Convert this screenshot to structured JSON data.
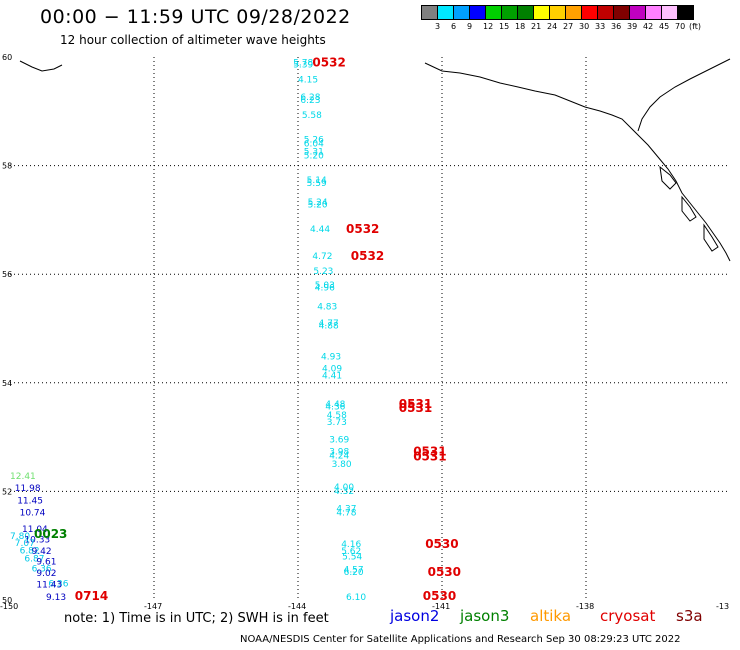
{
  "header": {
    "title": "00:00 − 11:59 UTC 09/28/2022",
    "subtitle": "12 hour collection of altimeter wave heights"
  },
  "legend": {
    "colors": [
      "#808080",
      "#00e8ff",
      "#00a0ff",
      "#0000ff",
      "#00d000",
      "#00a000",
      "#008000",
      "#ffff00",
      "#ffd000",
      "#ffa000",
      "#ff0000",
      "#c00000",
      "#800000",
      "#c000c0",
      "#ff80ff",
      "#ffc0ff",
      "#000000"
    ],
    "labels": [
      "3",
      "6",
      "9",
      "12",
      "15",
      "18",
      "21",
      "24",
      "27",
      "30",
      "33",
      "36",
      "39",
      "42",
      "45",
      "70",
      "(ft)"
    ]
  },
  "axes": {
    "x_ticks": [
      "-150",
      "-147",
      "-144",
      "-141",
      "-138",
      "-13"
    ],
    "y_ticks": [
      "60",
      "58",
      "56",
      "54",
      "52",
      "50"
    ]
  },
  "wave_labels": [
    {
      "t": "5.78",
      "c": "#00d8e8",
      "lon": -144.1,
      "lat": 59.92
    },
    {
      "t": "5.39",
      "c": "#00d8e8",
      "lon": -144.1,
      "lat": 59.88
    },
    {
      "t": "4.15",
      "c": "#00d8e8",
      "lon": -144.0,
      "lat": 59.6
    },
    {
      "t": "6.28",
      "c": "#00d8e8",
      "lon": -143.95,
      "lat": 59.28
    },
    {
      "t": "6.23",
      "c": "#00d8e8",
      "lon": -143.95,
      "lat": 59.23
    },
    {
      "t": "5.58",
      "c": "#00d8e8",
      "lon": -143.92,
      "lat": 58.95
    },
    {
      "t": "5.26",
      "c": "#00d8e8",
      "lon": -143.88,
      "lat": 58.5
    },
    {
      "t": "6.04",
      "c": "#00d8e8",
      "lon": -143.88,
      "lat": 58.43
    },
    {
      "t": "5.31",
      "c": "#00d8e8",
      "lon": -143.88,
      "lat": 58.28
    },
    {
      "t": "5.20",
      "c": "#00d8e8",
      "lon": -143.88,
      "lat": 58.2
    },
    {
      "t": "5.14",
      "c": "#00d8e8",
      "lon": -143.82,
      "lat": 57.75
    },
    {
      "t": "5.59",
      "c": "#00d8e8",
      "lon": -143.82,
      "lat": 57.7
    },
    {
      "t": "5.24",
      "c": "#00d8e8",
      "lon": -143.8,
      "lat": 57.35
    },
    {
      "t": "5.20",
      "c": "#00d8e8",
      "lon": -143.8,
      "lat": 57.3
    },
    {
      "t": "4.44",
      "c": "#00d8e8",
      "lon": -143.75,
      "lat": 56.85
    },
    {
      "t": "4.72",
      "c": "#00d8e8",
      "lon": -143.7,
      "lat": 56.35
    },
    {
      "t": "5.23",
      "c": "#00d8e8",
      "lon": -143.68,
      "lat": 56.08
    },
    {
      "t": "5.03",
      "c": "#00d8e8",
      "lon": -143.65,
      "lat": 55.82
    },
    {
      "t": "4.96",
      "c": "#00d8e8",
      "lon": -143.65,
      "lat": 55.77
    },
    {
      "t": "4.83",
      "c": "#00d8e8",
      "lon": -143.6,
      "lat": 55.42
    },
    {
      "t": "4.77",
      "c": "#00d8e8",
      "lon": -143.57,
      "lat": 55.12
    },
    {
      "t": "4.88",
      "c": "#00d8e8",
      "lon": -143.57,
      "lat": 55.07
    },
    {
      "t": "4.93",
      "c": "#00d8e8",
      "lon": -143.52,
      "lat": 54.5
    },
    {
      "t": "4.09",
      "c": "#00d8e8",
      "lon": -143.5,
      "lat": 54.28
    },
    {
      "t": "4.41",
      "c": "#00d8e8",
      "lon": -143.5,
      "lat": 54.15
    },
    {
      "t": "4.48",
      "c": "#00d8e8",
      "lon": -143.43,
      "lat": 53.63
    },
    {
      "t": "4.36",
      "c": "#00d8e8",
      "lon": -143.43,
      "lat": 53.58
    },
    {
      "t": "4.58",
      "c": "#00d8e8",
      "lon": -143.4,
      "lat": 53.43
    },
    {
      "t": "3.73",
      "c": "#00d8e8",
      "lon": -143.4,
      "lat": 53.3
    },
    {
      "t": "3.69",
      "c": "#00d8e8",
      "lon": -143.35,
      "lat": 52.97
    },
    {
      "t": "3.98",
      "c": "#00d8e8",
      "lon": -143.35,
      "lat": 52.75
    },
    {
      "t": "4.24",
      "c": "#00d8e8",
      "lon": -143.35,
      "lat": 52.68
    },
    {
      "t": "3.80",
      "c": "#00d8e8",
      "lon": -143.3,
      "lat": 52.52
    },
    {
      "t": "4.00",
      "c": "#00d8e8",
      "lon": -143.25,
      "lat": 52.1
    },
    {
      "t": "4.32",
      "c": "#00d8e8",
      "lon": -143.25,
      "lat": 52.03
    },
    {
      "t": "4.37",
      "c": "#00d8e8",
      "lon": -143.2,
      "lat": 51.7
    },
    {
      "t": "4.78",
      "c": "#00d8e8",
      "lon": -143.2,
      "lat": 51.63
    },
    {
      "t": "4.16",
      "c": "#00d8e8",
      "lon": -143.1,
      "lat": 51.05
    },
    {
      "t": "5.62",
      "c": "#00d8e8",
      "lon": -143.1,
      "lat": 50.92
    },
    {
      "t": "5.54",
      "c": "#00d8e8",
      "lon": -143.08,
      "lat": 50.82
    },
    {
      "t": "4.57",
      "c": "#00d8e8",
      "lon": -143.05,
      "lat": 50.58
    },
    {
      "t": "6.20",
      "c": "#00d8e8",
      "lon": -143.05,
      "lat": 50.53
    },
    {
      "t": "6.10",
      "c": "#00d8e8",
      "lon": -143.0,
      "lat": 50.0
    },
    {
      "t": "12.41",
      "c": "#70e070",
      "lon": -150.0,
      "lat": 52.3
    },
    {
      "t": "11.98",
      "c": "#0000c0",
      "lon": -149.9,
      "lat": 52.08
    },
    {
      "t": "11.45",
      "c": "#0000c0",
      "lon": -149.85,
      "lat": 51.85
    },
    {
      "t": "10.74",
      "c": "#0000c0",
      "lon": -149.8,
      "lat": 51.63
    },
    {
      "t": "11.04",
      "c": "#0000c0",
      "lon": -149.75,
      "lat": 51.33
    },
    {
      "t": "7.80",
      "c": "#00c8e8",
      "lon": -150.0,
      "lat": 51.2
    },
    {
      "t": "10.33",
      "c": "#0000c0",
      "lon": -149.7,
      "lat": 51.13
    },
    {
      "t": "7.07",
      "c": "#00c8e8",
      "lon": -149.9,
      "lat": 51.07
    },
    {
      "t": "6.82",
      "c": "#00c8e8",
      "lon": -149.8,
      "lat": 50.93
    },
    {
      "t": "9.42",
      "c": "#0000c0",
      "lon": -149.55,
      "lat": 50.92
    },
    {
      "t": "6.87",
      "c": "#00c8e8",
      "lon": -149.7,
      "lat": 50.78
    },
    {
      "t": "9.61",
      "c": "#0000c0",
      "lon": -149.45,
      "lat": 50.73
    },
    {
      "t": "6.36",
      "c": "#00c8e8",
      "lon": -149.55,
      "lat": 50.6
    },
    {
      "t": "9.02",
      "c": "#0000c0",
      "lon": -149.45,
      "lat": 50.52
    },
    {
      "t": "6.36",
      "c": "#00c8e8",
      "lon": -149.2,
      "lat": 50.32
    },
    {
      "t": "11.43",
      "c": "#0000c0",
      "lon": -149.45,
      "lat": 50.3
    },
    {
      "t": "9.13",
      "c": "#0000c0",
      "lon": -149.25,
      "lat": 50.0
    }
  ],
  "time_labels": [
    {
      "t": "0532",
      "lon": -143.7,
      "lat": 59.92
    },
    {
      "t": "0532",
      "lon": -143.0,
      "lat": 56.85
    },
    {
      "t": "0532",
      "lon": -142.9,
      "lat": 56.35
    },
    {
      "t": "0531",
      "lon": -141.9,
      "lat": 53.63
    },
    {
      "t": "0531",
      "lon": -141.9,
      "lat": 53.55
    },
    {
      "t": "0531",
      "lon": -141.6,
      "lat": 52.75
    },
    {
      "t": "0531",
      "lon": -141.6,
      "lat": 52.66
    },
    {
      "t": "0530",
      "lon": -141.35,
      "lat": 51.05
    },
    {
      "t": "0530",
      "lon": -141.3,
      "lat": 50.53
    },
    {
      "t": "0530",
      "lon": -141.4,
      "lat": 50.0
    },
    {
      "t": "0714",
      "lon": -148.65,
      "lat": 50.0
    }
  ],
  "green_label": {
    "t": "0023",
    "c": "#008000",
    "lon": -149.5,
    "lat": 51.22
  },
  "note": "note: 1) Time is in UTC; 2) SWH is in feet",
  "satellites": [
    {
      "name": "jason2",
      "color": "#0000e0"
    },
    {
      "name": "jason3",
      "color": "#008000"
    },
    {
      "name": "altika",
      "color": "#ff9900"
    },
    {
      "name": "cryosat",
      "color": "#e00000"
    },
    {
      "name": "s3a",
      "color": "#800000"
    }
  ],
  "credit": "NOAA/NESDIS Center for Satellite Applications and Research   Sep 30 08:29:23 UTC 2022"
}
